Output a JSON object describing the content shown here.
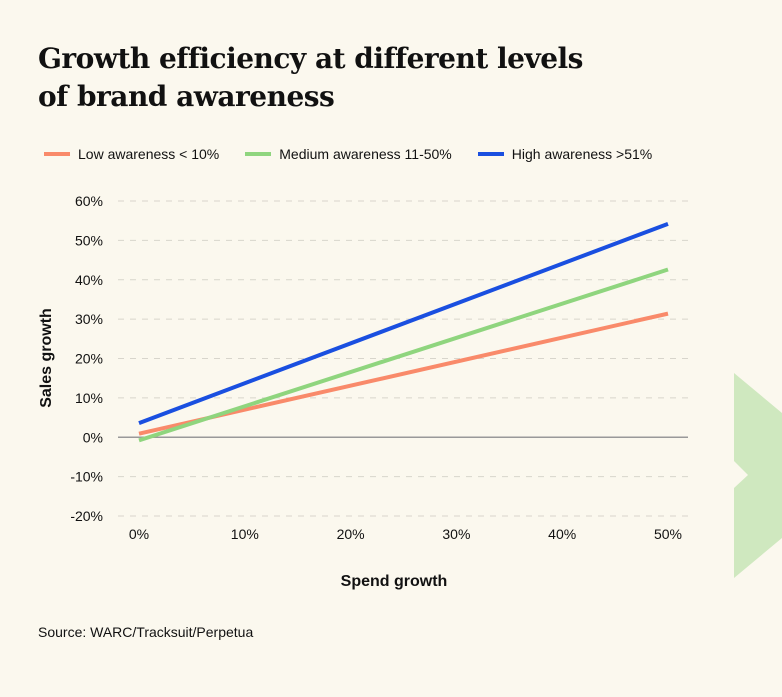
{
  "title": "Growth efficiency at different levels of brand awareness",
  "source": "Source: WARC/Tracksuit/Perpetua",
  "chart_data": {
    "type": "line",
    "title": "Growth efficiency at different levels of brand awareness",
    "xlabel": "Spend growth",
    "ylabel": "Sales growth",
    "xlim": [
      0,
      50
    ],
    "ylim": [
      -20,
      60
    ],
    "x_ticks": [
      0,
      10,
      20,
      30,
      40,
      50
    ],
    "x_tick_labels": [
      "0%",
      "10%",
      "20%",
      "30%",
      "40%",
      "50%"
    ],
    "y_ticks": [
      60,
      50,
      40,
      30,
      20,
      10,
      0,
      -10,
      -20
    ],
    "y_tick_labels": [
      "60%",
      "50%",
      "40%",
      "30%",
      "20%",
      "10%",
      "0%",
      "-10%",
      "-20%"
    ],
    "grid": "horizontal dashed",
    "legend_position": "top",
    "series": [
      {
        "name": "Low awareness < 10%",
        "color": "#f98a6a",
        "x": [
          0,
          50
        ],
        "y": [
          0.9,
          31.4
        ]
      },
      {
        "name": "Medium awareness 11-50%",
        "color": "#8fd57e",
        "x": [
          0,
          50
        ],
        "y": [
          -0.8,
          42.6
        ]
      },
      {
        "name": "High awareness >51%",
        "color": "#1a4fe0",
        "x": [
          0,
          50
        ],
        "y": [
          3.6,
          54.2
        ]
      }
    ]
  },
  "decoration_color": "#cfe8bf"
}
